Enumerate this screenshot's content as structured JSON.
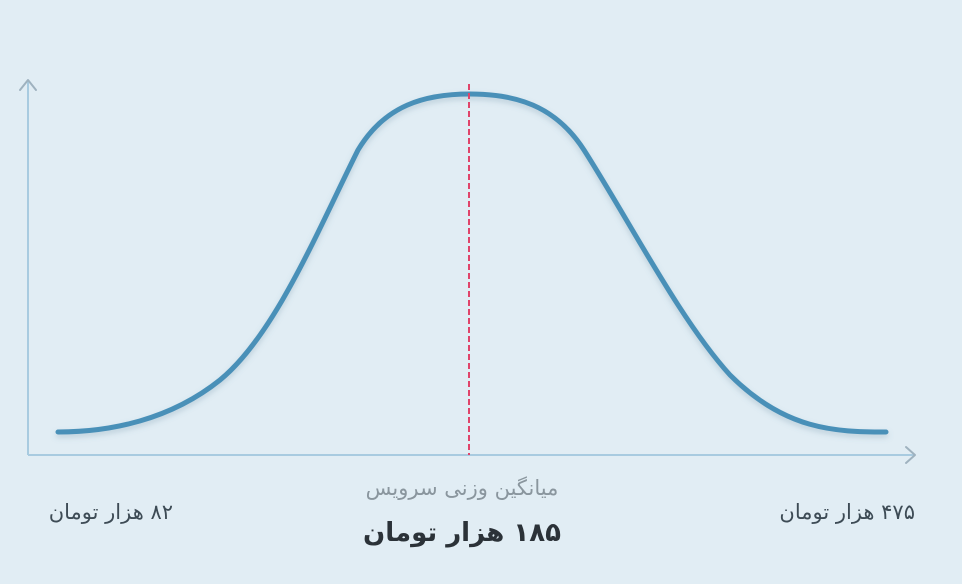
{
  "chart_data": {
    "type": "line",
    "title": "",
    "xlabel": "",
    "ylabel": "",
    "x_range": [
      82,
      475
    ],
    "mean": 185,
    "x_unit": "هزار تومان",
    "mean_caption": "میانگین وزنی سرویس",
    "mean_label": "۱۸۵ هزار تومان",
    "min_label": "۸۲ هزار تومان",
    "max_label": "۴۷۵ هزار تومان",
    "grid": false,
    "series": [
      {
        "curve": "bell",
        "color": "#4a90b8"
      }
    ],
    "mean_line_color": "#e0446a"
  }
}
